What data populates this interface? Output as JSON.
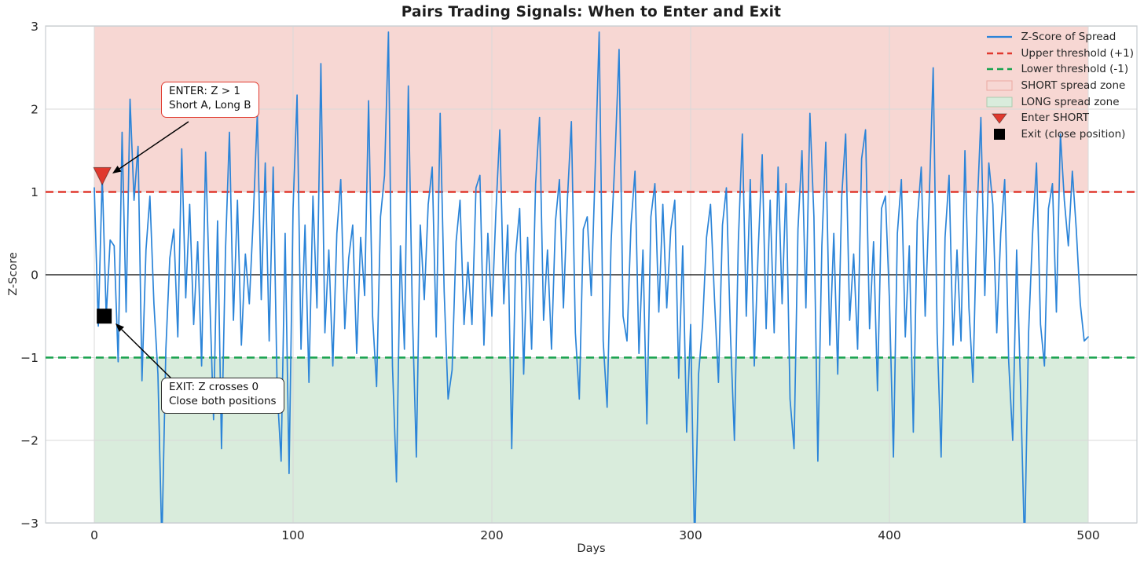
{
  "figure": {
    "title": "Pairs Trading Signals: When to Enter and Exit"
  },
  "colors": {
    "line_blue": "#2b84d8",
    "threshold_red": "#e0392e",
    "threshold_green": "#18a24e",
    "short_zone_fill": "#f7d7d3",
    "long_zone_fill": "#d9ecdc",
    "zero_line": "#000000",
    "grid": "#d9d9d9",
    "spine": "#c9cdd1",
    "text": "#262626",
    "marker_enter_fill": "#e0392e",
    "marker_exit_fill": "#000000",
    "annotation_enter_border": "#e0392e",
    "annotation_exit_border": "#2b2b2b",
    "arrow": "#000000"
  },
  "chart_data": {
    "type": "line",
    "title": "Pairs Trading Signals: When to Enter and Exit",
    "xlabel": "Days",
    "ylabel": "Z-Score",
    "xlim": [
      -25,
      525
    ],
    "ylim": [
      -3,
      3
    ],
    "xticks": [
      0,
      100,
      200,
      300,
      400,
      500
    ],
    "yticks": [
      -3,
      -2,
      -1,
      0,
      1,
      2,
      3
    ],
    "grid": true,
    "zero_line": 0,
    "thresholds": {
      "upper": 1,
      "lower": -1
    },
    "zones": {
      "short": {
        "label": "SHORT spread zone",
        "y_from": 1,
        "y_to": 3,
        "x_from": 0,
        "x_to": 500
      },
      "long": {
        "label": "LONG spread zone",
        "y_from": -3,
        "y_to": -1,
        "x_from": 0,
        "x_to": 500
      }
    },
    "markers": {
      "enter_short": {
        "label": "Enter SHORT",
        "shape": "triangle-down",
        "day": 4,
        "z": 1.2
      },
      "exit": {
        "label": "Exit (close position)",
        "shape": "square",
        "day": 5,
        "z": -0.5
      }
    },
    "annotations": [
      {
        "id": "enter",
        "text": "ENTER: Z > 1\nShort A, Long B",
        "target_day": 4,
        "target_z": 1.2
      },
      {
        "id": "exit",
        "text": "EXIT: Z crosses 0\nClose both positions",
        "target_day": 5,
        "target_z": -0.5
      }
    ],
    "legend": {
      "position": "upper right",
      "entries": [
        {
          "handle": "line-solid",
          "color": "#2b84d8",
          "label": "Z-Score of Spread"
        },
        {
          "handle": "line-dashed",
          "color": "#e0392e",
          "label": "Upper threshold (+1)"
        },
        {
          "handle": "line-dashed",
          "color": "#18a24e",
          "label": "Lower threshold (-1)"
        },
        {
          "handle": "patch",
          "fill": "#f7d7d3",
          "edge": "#eba9a2",
          "label": "SHORT spread zone"
        },
        {
          "handle": "patch",
          "fill": "#d9ecdc",
          "edge": "#a9cbae",
          "label": "LONG spread zone"
        },
        {
          "handle": "marker-triangle-down",
          "fill": "#e0392e",
          "label": "Enter SHORT"
        },
        {
          "handle": "marker-square",
          "fill": "#000000",
          "label": "Exit (close position)"
        }
      ]
    },
    "series": [
      {
        "name": "Z-Score of Spread",
        "x_start": 0,
        "x_step": 2,
        "values": [
          1.05,
          -0.62,
          1.2,
          -0.5,
          0.42,
          0.35,
          -1.05,
          1.72,
          -0.45,
          2.12,
          0.9,
          1.55,
          -1.28,
          0.3,
          0.95,
          -0.35,
          -1.2,
          -3.25,
          -0.9,
          0.2,
          0.55,
          -0.75,
          1.52,
          -0.28,
          0.85,
          -0.6,
          0.4,
          -1.1,
          1.48,
          -0.2,
          -1.75,
          0.65,
          -2.1,
          0.3,
          1.72,
          -0.55,
          0.9,
          -0.85,
          0.25,
          -0.35,
          0.7,
          1.95,
          -0.3,
          1.35,
          -0.8,
          1.3,
          -1.4,
          -2.25,
          0.5,
          -2.4,
          0.8,
          2.17,
          -0.9,
          0.6,
          -1.3,
          0.95,
          -0.4,
          2.55,
          -0.7,
          0.3,
          -1.1,
          0.5,
          1.15,
          -0.65,
          0.2,
          0.6,
          -0.95,
          0.45,
          -0.25,
          2.1,
          -0.5,
          -1.35,
          0.7,
          1.2,
          2.93,
          -1.1,
          -2.5,
          0.35,
          -0.9,
          2.28,
          -0.45,
          -2.2,
          0.6,
          -0.3,
          0.85,
          1.3,
          -0.75,
          1.95,
          -0.2,
          -1.5,
          -1.15,
          0.4,
          0.9,
          -0.6,
          0.15,
          -0.6,
          1.05,
          1.2,
          -0.85,
          0.5,
          -0.5,
          0.75,
          1.75,
          -0.35,
          0.6,
          -2.1,
          0.25,
          0.8,
          -1.2,
          0.45,
          -0.9,
          1.1,
          1.9,
          -0.55,
          0.3,
          -0.9,
          0.65,
          1.15,
          -0.4,
          0.9,
          1.85,
          -0.7,
          -1.5,
          0.55,
          0.7,
          -0.25,
          1.3,
          2.93,
          -0.8,
          -1.6,
          0.4,
          1.45,
          2.72,
          -0.5,
          -0.8,
          0.6,
          1.25,
          -0.95,
          0.3,
          -1.8,
          0.7,
          1.1,
          -0.45,
          0.85,
          -0.4,
          0.55,
          0.9,
          -1.25,
          0.35,
          -1.9,
          -0.6,
          -3.3,
          -1.2,
          -0.6,
          0.45,
          0.85,
          -0.3,
          -1.3,
          0.6,
          1.05,
          -0.7,
          -2.0,
          0.4,
          1.7,
          -0.5,
          1.15,
          -1.1,
          0.3,
          1.45,
          -0.65,
          0.9,
          -0.7,
          1.3,
          -0.35,
          1.1,
          -1.5,
          -2.1,
          0.55,
          1.5,
          -0.4,
          1.95,
          0.7,
          -2.25,
          0.35,
          1.6,
          -0.85,
          0.5,
          -1.2,
          0.95,
          1.7,
          -0.55,
          0.25,
          -0.9,
          1.4,
          1.75,
          -0.65,
          0.4,
          -1.4,
          0.8,
          0.95,
          -0.3,
          -2.2,
          0.5,
          1.15,
          -0.75,
          0.35,
          -1.9,
          0.65,
          1.3,
          -0.5,
          0.9,
          2.5,
          -0.7,
          -2.2,
          0.45,
          1.2,
          -0.85,
          0.3,
          -0.8,
          1.5,
          -0.4,
          -1.3,
          0.7,
          1.9,
          -0.25,
          1.35,
          0.85,
          -0.7,
          0.5,
          1.15,
          -1.05,
          -2.0,
          0.3,
          -1.4,
          -3.3,
          -0.7,
          0.5,
          1.35,
          -0.6,
          -1.1,
          0.8,
          1.1,
          -0.45,
          1.7,
          0.9,
          0.35,
          1.25,
          0.55,
          -0.35,
          -0.8,
          -0.75
        ]
      }
    ]
  }
}
